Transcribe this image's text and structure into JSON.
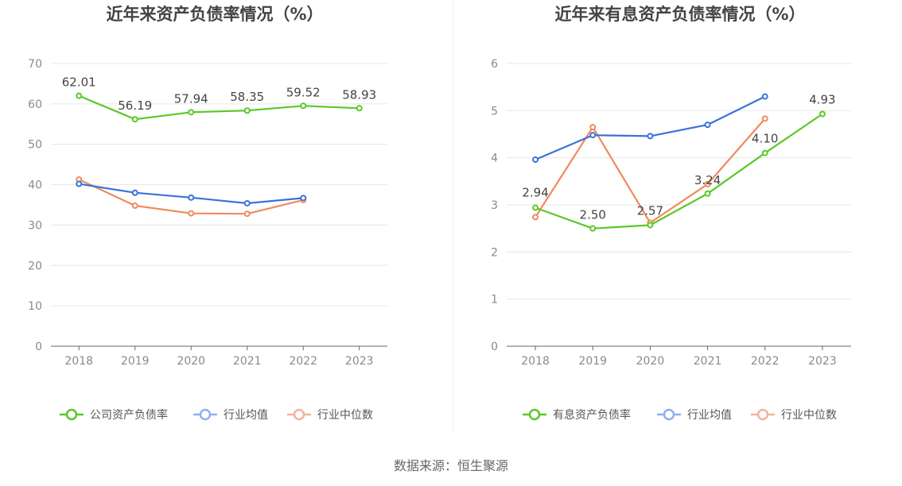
{
  "source": "数据来源：恒生聚源",
  "chart_data": [
    {
      "type": "line",
      "title": "近年来资产负债率情况（%）",
      "categories": [
        "2018",
        "2019",
        "2020",
        "2021",
        "2022",
        "2023"
      ],
      "ylim": [
        0,
        70
      ],
      "yticks": [
        "0",
        "10",
        "20",
        "30",
        "40",
        "50",
        "60",
        "70"
      ],
      "series": [
        {
          "name": "公司资产负债率",
          "color": "#5cc72a",
          "values": [
            62.01,
            56.19,
            57.94,
            58.35,
            59.52,
            58.93
          ],
          "labels": [
            "62.01",
            "56.19",
            "57.94",
            "58.35",
            "59.52",
            "58.93"
          ]
        },
        {
          "name": "行业均值",
          "color": "#3a72d9",
          "values": [
            40.2,
            38.0,
            36.8,
            35.4,
            36.7,
            null
          ]
        },
        {
          "name": "行业中位数",
          "color": "#f08a5d",
          "values": [
            41.3,
            34.8,
            32.9,
            32.8,
            36.2,
            null
          ]
        }
      ],
      "legend": [
        {
          "name": "公司资产负债率",
          "color": "#5cc72a"
        },
        {
          "name": "行业均值",
          "color": "#8fb0ee"
        },
        {
          "name": "行业中位数",
          "color": "#f6b29b"
        }
      ]
    },
    {
      "type": "line",
      "title": "近年来有息资产负债率情况（%）",
      "categories": [
        "2018",
        "2019",
        "2020",
        "2021",
        "2022",
        "2023"
      ],
      "ylim": [
        0,
        6
      ],
      "yticks": [
        "0",
        "1",
        "2",
        "3",
        "4",
        "5",
        "6"
      ],
      "series": [
        {
          "name": "有息资产负债率",
          "color": "#5cc72a",
          "values": [
            2.94,
            2.5,
            2.57,
            3.24,
            4.1,
            4.93
          ],
          "labels": [
            "2.94",
            "2.50",
            "2.57",
            "3.24",
            "4.10",
            "4.93"
          ]
        },
        {
          "name": "行业均值",
          "color": "#3a72d9",
          "values": [
            3.96,
            4.48,
            4.46,
            4.7,
            5.3,
            null
          ]
        },
        {
          "name": "行业中位数",
          "color": "#f08a5d",
          "values": [
            2.74,
            4.65,
            2.62,
            3.44,
            4.83,
            null
          ]
        }
      ],
      "legend": [
        {
          "name": "有息资产负债率",
          "color": "#5cc72a"
        },
        {
          "name": "行业均值",
          "color": "#8fb0ee"
        },
        {
          "name": "行业中位数",
          "color": "#f6b29b"
        }
      ]
    }
  ]
}
